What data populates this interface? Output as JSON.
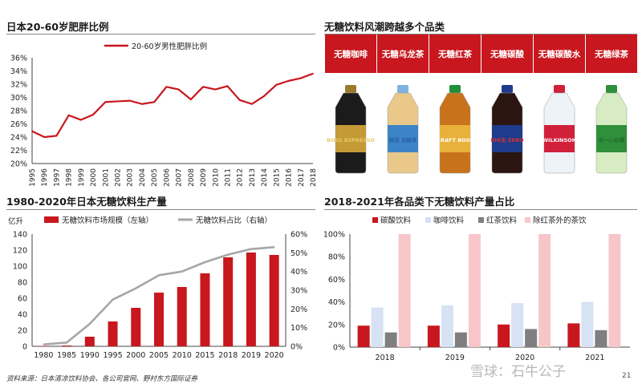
{
  "panels": {
    "top_left_title": "日本20-60岁肥胖比例",
    "top_right_title": "无糖饮料风潮跨越多个品类",
    "bottom_left_title": "1980-2020年日本无糖饮料生产量",
    "bottom_right_title": "2018-2021年各品类下无糖饮料产量占比"
  },
  "categories_banner": {
    "items": [
      {
        "label": "无糖咖啡",
        "product_text": "BOSS ESPRESSO"
      },
      {
        "label": "无糖乌龙茶",
        "product_text": "颐活 烏龍茶"
      },
      {
        "label": "无糖红茶",
        "product_text": "CRAFT BOSS"
      },
      {
        "label": "无糖碳酸",
        "product_text": "BIG生 ZERO"
      },
      {
        "label": "无糖碳酸水",
        "product_text": "WILKINSON"
      },
      {
        "label": "无糖绿茶",
        "product_text": "お〜いお茶"
      }
    ]
  },
  "footer": {
    "source": "资料来源：日本清凉饮料协会、各公司官网、野村东方国际证券",
    "watermark": "雪球：石牛公子",
    "page_number": "21"
  },
  "colors": {
    "red": "#c8171e",
    "grey": "#a6a6a6",
    "light_blue": "#d7e2f4",
    "dark_grey": "#7f7f7f",
    "pink": "#f6c6c9"
  },
  "chart_data": [
    {
      "type": "line",
      "legend": [
        "20-60岁男性肥胖比例"
      ],
      "legend_position": "top-center",
      "x": [
        "1995",
        "1996",
        "1997",
        "1998",
        "1999",
        "2000",
        "2001",
        "2002",
        "2003",
        "2004",
        "2005",
        "2006",
        "2007",
        "2008",
        "2009",
        "2010",
        "2011",
        "2012",
        "2013",
        "2014",
        "2015",
        "2016",
        "2017",
        "2018"
      ],
      "series": [
        {
          "name": "20-60岁男性肥胖比例",
          "values": [
            24.9,
            24.0,
            24.2,
            27.3,
            26.6,
            27.4,
            29.3,
            29.4,
            29.5,
            29.0,
            29.3,
            31.6,
            31.2,
            29.7,
            31.6,
            31.2,
            31.7,
            29.6,
            29.0,
            30.2,
            31.9,
            32.5,
            32.9,
            33.6
          ]
        }
      ],
      "yticks": [
        "20%",
        "22%",
        "24%",
        "26%",
        "28%",
        "30%",
        "32%",
        "34%",
        "36%"
      ],
      "ylim": [
        20,
        36
      ],
      "grid": false
    },
    {
      "type": "bar",
      "unit_label": "亿升",
      "categories": [
        "1980",
        "1985",
        "1990",
        "1995",
        "2000",
        "2005",
        "2010",
        "2015",
        "2018",
        "2019",
        "2020"
      ],
      "series": [
        {
          "name": "无糖饮料市场规模（左轴）",
          "type": "bar",
          "axis": "left",
          "values": [
            0.5,
            1,
            12,
            31,
            48,
            67,
            74,
            91,
            111,
            117,
            114
          ]
        },
        {
          "name": "无糖饮料占比（右轴）",
          "type": "line",
          "axis": "right",
          "values": [
            1,
            2,
            12,
            25,
            31,
            38,
            40,
            45,
            49,
            52,
            53
          ]
        }
      ],
      "left_ticks": [
        "0",
        "20",
        "40",
        "60",
        "80",
        "100",
        "120",
        "140"
      ],
      "right_ticks": [
        "0%",
        "10%",
        "20%",
        "30%",
        "40%",
        "50%",
        "60%"
      ],
      "ylim_left": [
        0,
        140
      ],
      "ylim_right": [
        0,
        60
      ],
      "legend_position": "top",
      "grid": false
    },
    {
      "type": "bar",
      "categories": [
        "2018",
        "2019",
        "2020",
        "2021"
      ],
      "series": [
        {
          "name": "碳酸饮料",
          "values": [
            19,
            19,
            20,
            21
          ]
        },
        {
          "name": "咖啡饮料",
          "values": [
            35,
            37,
            39,
            40
          ]
        },
        {
          "name": "红茶饮料",
          "values": [
            13,
            13,
            16,
            15
          ]
        },
        {
          "name": "除红茶外的茶饮",
          "values": [
            100,
            100,
            100,
            100
          ]
        }
      ],
      "yticks": [
        "0%",
        "20%",
        "40%",
        "60%",
        "80%",
        "100%"
      ],
      "ylim": [
        0,
        100
      ],
      "legend_position": "top",
      "grid": false
    }
  ]
}
